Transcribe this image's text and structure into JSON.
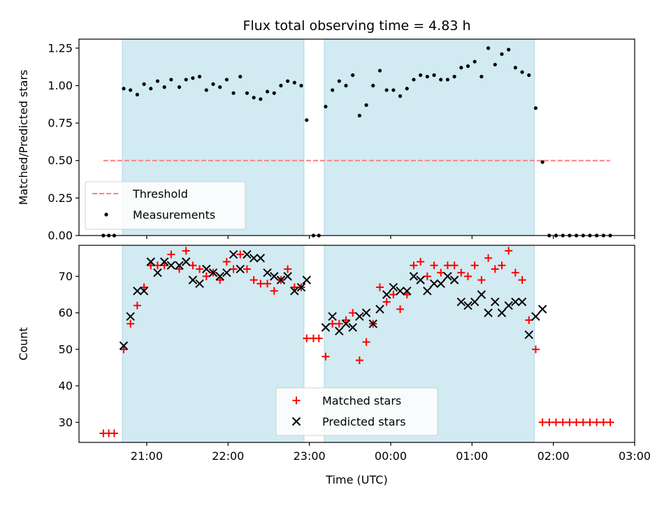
{
  "chart_data": [
    {
      "type": "scatter",
      "title": "Flux total observing time = 4.83 h",
      "ylabel": "Matched/Predicted stars",
      "xlabel": "",
      "x_unit": "time (UTC), ISO datetimes",
      "xlim": [
        "2024-01-01T20:10",
        "2024-01-02T03:00"
      ],
      "ylim": [
        0,
        1.31
      ],
      "x_ticks": [
        "21:00",
        "22:00",
        "23:00",
        "00:00",
        "01:00",
        "02:00",
        "03:00"
      ],
      "y_ticks": [
        "0.00",
        "0.25",
        "0.50",
        "0.75",
        "1.00",
        "1.25"
      ],
      "shaded_intervals": [
        [
          "2024-01-01T20:42",
          "2024-01-01T22:56"
        ],
        [
          "2024-01-01T23:11",
          "2024-01-02T01:46"
        ]
      ],
      "shade_color": "#add8e6",
      "legend_position": "lower-left",
      "series": [
        {
          "name": "Threshold",
          "style": "dashed-line",
          "color": "#ff7f7f",
          "x": [
            "2024-01-01T20:28",
            "2024-01-02T02:42"
          ],
          "y": [
            0.5,
            0.5
          ]
        },
        {
          "name": "Measurements",
          "style": "dot",
          "color": "#000000",
          "points": [
            [
              "2024-01-01T20:28",
              0.0
            ],
            [
              "2024-01-01T20:32",
              0.0
            ],
            [
              "2024-01-01T20:36",
              0.0
            ],
            [
              "2024-01-01T20:43",
              0.98
            ],
            [
              "2024-01-01T20:48",
              0.97
            ],
            [
              "2024-01-01T20:53",
              0.94
            ],
            [
              "2024-01-01T20:58",
              1.01
            ],
            [
              "2024-01-01T21:03",
              0.98
            ],
            [
              "2024-01-01T21:08",
              1.03
            ],
            [
              "2024-01-01T21:13",
              0.99
            ],
            [
              "2024-01-01T21:18",
              1.04
            ],
            [
              "2024-01-01T21:24",
              0.99
            ],
            [
              "2024-01-01T21:29",
              1.04
            ],
            [
              "2024-01-01T21:34",
              1.05
            ],
            [
              "2024-01-01T21:39",
              1.06
            ],
            [
              "2024-01-01T21:44",
              0.97
            ],
            [
              "2024-01-01T21:49",
              1.01
            ],
            [
              "2024-01-01T21:54",
              0.99
            ],
            [
              "2024-01-01T21:59",
              1.04
            ],
            [
              "2024-01-01T22:04",
              0.95
            ],
            [
              "2024-01-01T22:09",
              1.06
            ],
            [
              "2024-01-01T22:14",
              0.95
            ],
            [
              "2024-01-01T22:19",
              0.92
            ],
            [
              "2024-01-01T22:24",
              0.91
            ],
            [
              "2024-01-01T22:29",
              0.96
            ],
            [
              "2024-01-01T22:34",
              0.95
            ],
            [
              "2024-01-01T22:39",
              1.0
            ],
            [
              "2024-01-01T22:44",
              1.03
            ],
            [
              "2024-01-01T22:49",
              1.02
            ],
            [
              "2024-01-01T22:54",
              1.0
            ],
            [
              "2024-01-01T22:58",
              0.77
            ],
            [
              "2024-01-01T23:03",
              0.0
            ],
            [
              "2024-01-01T23:07",
              0.0
            ],
            [
              "2024-01-01T23:12",
              0.86
            ],
            [
              "2024-01-01T23:17",
              0.97
            ],
            [
              "2024-01-01T23:22",
              1.03
            ],
            [
              "2024-01-01T23:27",
              1.0
            ],
            [
              "2024-01-01T23:32",
              1.07
            ],
            [
              "2024-01-01T23:37",
              0.8
            ],
            [
              "2024-01-01T23:42",
              0.87
            ],
            [
              "2024-01-01T23:47",
              1.0
            ],
            [
              "2024-01-01T23:52",
              1.1
            ],
            [
              "2024-01-01T23:57",
              0.97
            ],
            [
              "2024-01-02T00:02",
              0.97
            ],
            [
              "2024-01-02T00:07",
              0.93
            ],
            [
              "2024-01-02T00:12",
              0.98
            ],
            [
              "2024-01-02T00:17",
              1.04
            ],
            [
              "2024-01-02T00:22",
              1.07
            ],
            [
              "2024-01-02T00:27",
              1.06
            ],
            [
              "2024-01-02T00:32",
              1.07
            ],
            [
              "2024-01-02T00:37",
              1.04
            ],
            [
              "2024-01-02T00:42",
              1.04
            ],
            [
              "2024-01-02T00:47",
              1.06
            ],
            [
              "2024-01-02T00:52",
              1.12
            ],
            [
              "2024-01-02T00:57",
              1.13
            ],
            [
              "2024-01-02T01:02",
              1.16
            ],
            [
              "2024-01-02T01:07",
              1.06
            ],
            [
              "2024-01-02T01:12",
              1.25
            ],
            [
              "2024-01-02T01:17",
              1.14
            ],
            [
              "2024-01-02T01:22",
              1.21
            ],
            [
              "2024-01-02T01:27",
              1.24
            ],
            [
              "2024-01-02T01:32",
              1.12
            ],
            [
              "2024-01-02T01:37",
              1.09
            ],
            [
              "2024-01-02T01:42",
              1.07
            ],
            [
              "2024-01-02T01:47",
              0.85
            ],
            [
              "2024-01-02T01:52",
              0.49
            ],
            [
              "2024-01-02T01:57",
              0.0
            ],
            [
              "2024-01-02T02:02",
              0.0
            ],
            [
              "2024-01-02T02:07",
              0.0
            ],
            [
              "2024-01-02T02:12",
              0.0
            ],
            [
              "2024-01-02T02:17",
              0.0
            ],
            [
              "2024-01-02T02:22",
              0.0
            ],
            [
              "2024-01-02T02:27",
              0.0
            ],
            [
              "2024-01-02T02:32",
              0.0
            ],
            [
              "2024-01-02T02:37",
              0.0
            ],
            [
              "2024-01-02T02:42",
              0.0
            ]
          ]
        }
      ]
    },
    {
      "type": "scatter",
      "title": "",
      "ylabel": "Count",
      "xlabel": "Time (UTC)",
      "x_unit": "time (UTC), ISO datetimes",
      "xlim": [
        "2024-01-01T20:10",
        "2024-01-02T03:00"
      ],
      "ylim": [
        24.5,
        78.5
      ],
      "x_ticks": [
        "21:00",
        "22:00",
        "23:00",
        "00:00",
        "01:00",
        "02:00",
        "03:00"
      ],
      "y_ticks": [
        "30",
        "40",
        "50",
        "60",
        "70"
      ],
      "shaded_intervals": [
        [
          "2024-01-01T20:42",
          "2024-01-01T22:56"
        ],
        [
          "2024-01-01T23:11",
          "2024-01-02T01:46"
        ]
      ],
      "shade_color": "#add8e6",
      "legend_position": "lower-center",
      "series": [
        {
          "name": "Matched stars",
          "marker": "plus",
          "color": "#ff0000",
          "points": [
            [
              "2024-01-01T20:28",
              27
            ],
            [
              "2024-01-01T20:32",
              27
            ],
            [
              "2024-01-01T20:36",
              27
            ],
            [
              "2024-01-01T20:43",
              50
            ],
            [
              "2024-01-01T20:48",
              57
            ],
            [
              "2024-01-01T20:53",
              62
            ],
            [
              "2024-01-01T20:58",
              67
            ],
            [
              "2024-01-01T21:03",
              73
            ],
            [
              "2024-01-01T21:08",
              73
            ],
            [
              "2024-01-01T21:13",
              73
            ],
            [
              "2024-01-01T21:18",
              76
            ],
            [
              "2024-01-01T21:24",
              72
            ],
            [
              "2024-01-01T21:29",
              77
            ],
            [
              "2024-01-01T21:34",
              73
            ],
            [
              "2024-01-01T21:39",
              72
            ],
            [
              "2024-01-01T21:44",
              70
            ],
            [
              "2024-01-01T21:49",
              71
            ],
            [
              "2024-01-01T21:54",
              69
            ],
            [
              "2024-01-01T21:59",
              74
            ],
            [
              "2024-01-01T22:04",
              72
            ],
            [
              "2024-01-01T22:09",
              76
            ],
            [
              "2024-01-01T22:14",
              72
            ],
            [
              "2024-01-01T22:19",
              69
            ],
            [
              "2024-01-01T22:24",
              68
            ],
            [
              "2024-01-01T22:29",
              68
            ],
            [
              "2024-01-01T22:34",
              66
            ],
            [
              "2024-01-01T22:39",
              69
            ],
            [
              "2024-01-01T22:44",
              72
            ],
            [
              "2024-01-01T22:49",
              67
            ],
            [
              "2024-01-01T22:54",
              67
            ],
            [
              "2024-01-01T22:58",
              53
            ],
            [
              "2024-01-01T23:03",
              53
            ],
            [
              "2024-01-01T23:07",
              53
            ],
            [
              "2024-01-01T23:12",
              48
            ],
            [
              "2024-01-01T23:17",
              57
            ],
            [
              "2024-01-01T23:22",
              57
            ],
            [
              "2024-01-01T23:27",
              58
            ],
            [
              "2024-01-01T23:32",
              60
            ],
            [
              "2024-01-01T23:37",
              47
            ],
            [
              "2024-01-01T23:42",
              52
            ],
            [
              "2024-01-01T23:47",
              57
            ],
            [
              "2024-01-01T23:52",
              67
            ],
            [
              "2024-01-01T23:57",
              63
            ],
            [
              "2024-01-02T00:02",
              65
            ],
            [
              "2024-01-02T00:07",
              61
            ],
            [
              "2024-01-02T00:12",
              65
            ],
            [
              "2024-01-02T00:17",
              73
            ],
            [
              "2024-01-02T00:22",
              74
            ],
            [
              "2024-01-02T00:27",
              70
            ],
            [
              "2024-01-02T00:32",
              73
            ],
            [
              "2024-01-02T00:37",
              71
            ],
            [
              "2024-01-02T00:42",
              73
            ],
            [
              "2024-01-02T00:47",
              73
            ],
            [
              "2024-01-02T00:52",
              71
            ],
            [
              "2024-01-02T00:57",
              70
            ],
            [
              "2024-01-02T01:02",
              73
            ],
            [
              "2024-01-02T01:07",
              69
            ],
            [
              "2024-01-02T01:12",
              75
            ],
            [
              "2024-01-02T01:17",
              72
            ],
            [
              "2024-01-02T01:22",
              73
            ],
            [
              "2024-01-02T01:27",
              77
            ],
            [
              "2024-01-02T01:32",
              71
            ],
            [
              "2024-01-02T01:37",
              69
            ],
            [
              "2024-01-02T01:42",
              58
            ],
            [
              "2024-01-02T01:47",
              50
            ],
            [
              "2024-01-02T01:52",
              30
            ],
            [
              "2024-01-02T01:57",
              30
            ],
            [
              "2024-01-02T02:02",
              30
            ],
            [
              "2024-01-02T02:07",
              30
            ],
            [
              "2024-01-02T02:12",
              30
            ],
            [
              "2024-01-02T02:17",
              30
            ],
            [
              "2024-01-02T02:22",
              30
            ],
            [
              "2024-01-02T02:27",
              30
            ],
            [
              "2024-01-02T02:32",
              30
            ],
            [
              "2024-01-02T02:37",
              30
            ],
            [
              "2024-01-02T02:42",
              30
            ]
          ]
        },
        {
          "name": "Predicted stars",
          "marker": "x",
          "color": "#000000",
          "points": [
            [
              "2024-01-01T20:43",
              51
            ],
            [
              "2024-01-01T20:48",
              59
            ],
            [
              "2024-01-01T20:53",
              66
            ],
            [
              "2024-01-01T20:58",
              66
            ],
            [
              "2024-01-01T21:03",
              74
            ],
            [
              "2024-01-01T21:08",
              71
            ],
            [
              "2024-01-01T21:13",
              74
            ],
            [
              "2024-01-01T21:18",
              73
            ],
            [
              "2024-01-01T21:24",
              73
            ],
            [
              "2024-01-01T21:29",
              74
            ],
            [
              "2024-01-01T21:34",
              69
            ],
            [
              "2024-01-01T21:39",
              68
            ],
            [
              "2024-01-01T21:44",
              72
            ],
            [
              "2024-01-01T21:49",
              71
            ],
            [
              "2024-01-01T21:54",
              70
            ],
            [
              "2024-01-01T21:59",
              71
            ],
            [
              "2024-01-01T22:04",
              76
            ],
            [
              "2024-01-01T22:09",
              72
            ],
            [
              "2024-01-01T22:14",
              76
            ],
            [
              "2024-01-01T22:19",
              75
            ],
            [
              "2024-01-01T22:24",
              75
            ],
            [
              "2024-01-01T22:29",
              71
            ],
            [
              "2024-01-01T22:34",
              70
            ],
            [
              "2024-01-01T22:39",
              69
            ],
            [
              "2024-01-01T22:44",
              70
            ],
            [
              "2024-01-01T22:49",
              66
            ],
            [
              "2024-01-01T22:54",
              67
            ],
            [
              "2024-01-01T22:58",
              69
            ],
            [
              "2024-01-01T23:12",
              56
            ],
            [
              "2024-01-01T23:17",
              59
            ],
            [
              "2024-01-01T23:22",
              55
            ],
            [
              "2024-01-01T23:27",
              57
            ],
            [
              "2024-01-01T23:32",
              56
            ],
            [
              "2024-01-01T23:37",
              59
            ],
            [
              "2024-01-01T23:42",
              60
            ],
            [
              "2024-01-01T23:47",
              57
            ],
            [
              "2024-01-01T23:52",
              61
            ],
            [
              "2024-01-01T23:57",
              65
            ],
            [
              "2024-01-02T00:02",
              67
            ],
            [
              "2024-01-02T00:07",
              66
            ],
            [
              "2024-01-02T00:12",
              66
            ],
            [
              "2024-01-02T00:17",
              70
            ],
            [
              "2024-01-02T00:22",
              69
            ],
            [
              "2024-01-02T00:27",
              66
            ],
            [
              "2024-01-02T00:32",
              68
            ],
            [
              "2024-01-02T00:37",
              68
            ],
            [
              "2024-01-02T00:42",
              70
            ],
            [
              "2024-01-02T00:47",
              69
            ],
            [
              "2024-01-02T00:52",
              63
            ],
            [
              "2024-01-02T00:57",
              62
            ],
            [
              "2024-01-02T01:02",
              63
            ],
            [
              "2024-01-02T01:07",
              65
            ],
            [
              "2024-01-02T01:12",
              60
            ],
            [
              "2024-01-02T01:17",
              63
            ],
            [
              "2024-01-02T01:22",
              60
            ],
            [
              "2024-01-02T01:27",
              62
            ],
            [
              "2024-01-02T01:32",
              63
            ],
            [
              "2024-01-02T01:37",
              63
            ],
            [
              "2024-01-02T01:42",
              54
            ],
            [
              "2024-01-02T01:47",
              59
            ],
            [
              "2024-01-02T01:52",
              61
            ]
          ]
        }
      ]
    }
  ]
}
